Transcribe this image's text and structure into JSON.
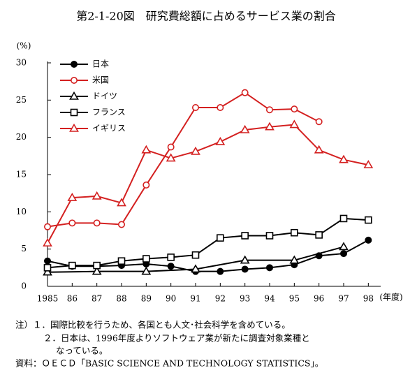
{
  "chart_data": {
    "type": "line",
    "title": "第2-1-20図　研究費総額に占めるサービス業の割合",
    "y_unit": "(%)",
    "x_unit": "(年度)",
    "x": [
      1985,
      1986,
      1987,
      1988,
      1989,
      1990,
      1991,
      1992,
      1993,
      1994,
      1995,
      1996,
      1997,
      1998
    ],
    "xlim": [
      1985,
      1998.5
    ],
    "xticks": [
      {
        "value": 1985,
        "label": "1985"
      },
      {
        "value": 1986,
        "label": "86"
      },
      {
        "value": 1987,
        "label": "87"
      },
      {
        "value": 1988,
        "label": "88"
      },
      {
        "value": 1989,
        "label": "89"
      },
      {
        "value": 1990,
        "label": "90"
      },
      {
        "value": 1991,
        "label": "91"
      },
      {
        "value": 1992,
        "label": "92"
      },
      {
        "value": 1993,
        "label": "93"
      },
      {
        "value": 1994,
        "label": "94"
      },
      {
        "value": 1995,
        "label": "95"
      },
      {
        "value": 1996,
        "label": "96"
      },
      {
        "value": 1997,
        "label": "97"
      },
      {
        "value": 1998,
        "label": "98"
      }
    ],
    "ylim": [
      0,
      30
    ],
    "yticks": [
      0,
      5,
      10,
      15,
      20,
      25,
      30
    ],
    "legend": "upper-left",
    "series": [
      {
        "name": "日本",
        "color": "#000000",
        "marker": "filled-circle",
        "values": [
          3.4,
          2.7,
          2.7,
          2.8,
          3.0,
          2.7,
          2.0,
          2.0,
          2.3,
          2.5,
          2.9,
          4.1,
          4.4,
          6.2
        ]
      },
      {
        "name": "米国",
        "color": "#d42020",
        "marker": "circle",
        "values": [
          8.0,
          8.5,
          8.5,
          8.3,
          13.6,
          18.7,
          24.0,
          24.0,
          26.0,
          23.7,
          23.8,
          22.1,
          null,
          null
        ]
      },
      {
        "name": "ドイツ",
        "color": "#000000",
        "marker": "triangle",
        "x": [
          1985,
          1987,
          1989,
          1991,
          1993,
          1995,
          1997
        ],
        "values": [
          1.9,
          2.0,
          2.0,
          2.3,
          3.5,
          3.5,
          5.3
        ]
      },
      {
        "name": "フランス",
        "color": "#000000",
        "marker": "square",
        "values": [
          2.5,
          2.8,
          2.8,
          3.4,
          3.7,
          3.9,
          4.2,
          6.5,
          6.8,
          6.8,
          7.2,
          6.9,
          9.1,
          8.9
        ]
      },
      {
        "name": "イギリス",
        "color": "#d42020",
        "marker": "triangle",
        "values": [
          5.8,
          11.9,
          12.1,
          11.2,
          18.3,
          17.2,
          18.1,
          19.4,
          21.0,
          21.4,
          21.7,
          18.3,
          17.0,
          16.3
        ]
      }
    ]
  },
  "notes": {
    "lines": [
      "注）１．国際比較を行うため、各国とも人文･社会科学を含めている。",
      "２．日本は、1996年度よりソフトウェア業が新たに調査対象業種と",
      "なっている。",
      "資料：ＯＥＣＤ「BASIC SCIENCE AND TECHNOLOGY STATISTICS」。"
    ]
  }
}
